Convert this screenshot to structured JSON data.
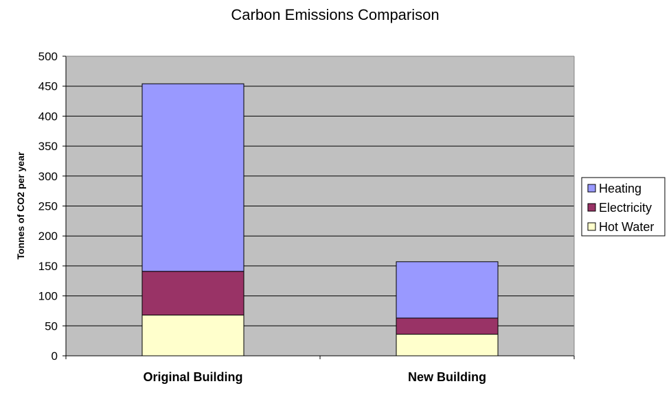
{
  "chart_data": {
    "type": "bar",
    "stacked": true,
    "title": "Carbon Emissions Comparison",
    "xlabel": "",
    "ylabel": "Tonnes of CO2 per year",
    "ylim": [
      0,
      500
    ],
    "yticks": [
      0,
      50,
      100,
      150,
      200,
      250,
      300,
      350,
      400,
      450,
      500
    ],
    "grid": true,
    "legend_position": "right",
    "categories": [
      "Original Building",
      "New Building"
    ],
    "series": [
      {
        "name": "Hot Water",
        "values": [
          68,
          36
        ],
        "color": "#ffffcc"
      },
      {
        "name": "Electricity",
        "values": [
          73,
          27
        ],
        "color": "#993366"
      },
      {
        "name": "Heating",
        "values": [
          313,
          94
        ],
        "color": "#9999ff"
      }
    ],
    "legend_order": [
      "Heating",
      "Electricity",
      "Hot Water"
    ],
    "plot_background": "#c0c0c0"
  }
}
